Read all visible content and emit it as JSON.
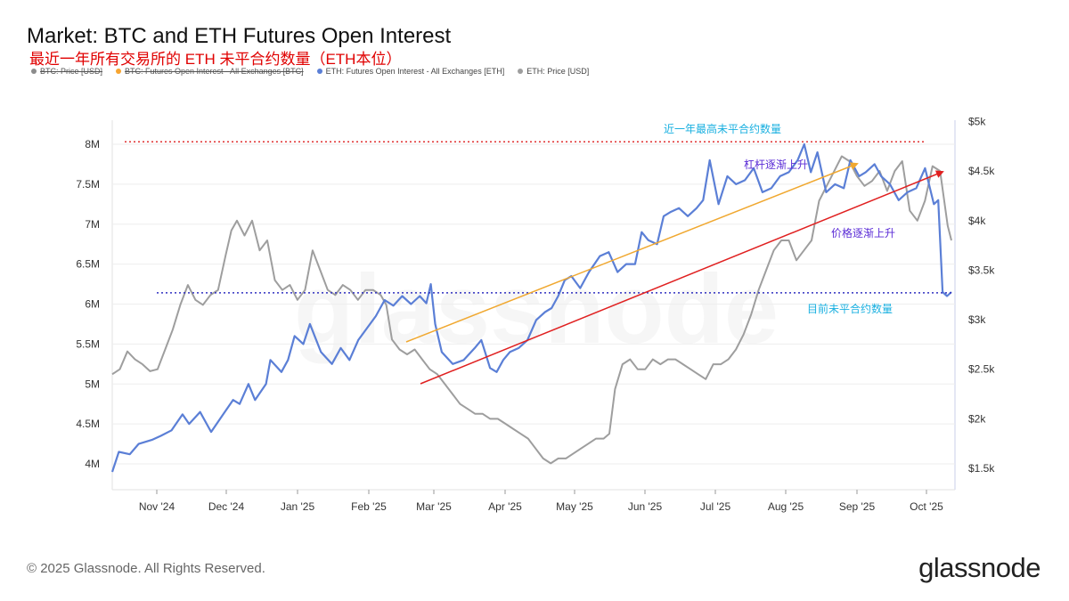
{
  "header": {
    "title": "Market: BTC and ETH Futures Open Interest",
    "subtitle": "最近一年所有交易所的 ETH 未平合约数量（ETH本位）"
  },
  "legend": [
    {
      "label": "BTC: Price [USD]",
      "color": "#8c8c8c",
      "struck": true
    },
    {
      "label": "BTC: Futures Open Interest - All Exchanges [BTC]",
      "color": "#f7a531",
      "struck": true
    },
    {
      "label": "ETH: Futures Open Interest - All Exchanges [ETH]",
      "color": "#5b7fd6",
      "struck": false
    },
    {
      "label": "ETH: Price [USD]",
      "color": "#9e9e9e",
      "struck": false
    }
  ],
  "watermark": "glassnode",
  "annotations": {
    "max_oi_label": "近一年最高未平合约数量",
    "leverage_label": "杠杆逐渐上升",
    "price_label": "价格逐渐上升",
    "current_oi_label": "目前未平合约数量"
  },
  "footer": {
    "copyright": "© 2025 Glassnode. All Rights Reserved.",
    "brand": "glassnode"
  },
  "colors": {
    "oi_line": "#5b7fd6",
    "price_line": "#9e9e9e",
    "max_line": "#e03030",
    "current_line": "#3030c0",
    "leverage_arrow": "#f0a830",
    "price_arrow": "#e02020",
    "cyan_text": "#1ab0e0",
    "purple_text": "#5a2bd6"
  },
  "chart_data": {
    "type": "line",
    "x_ticks": [
      "Nov '24",
      "Dec '24",
      "Jan '25",
      "Feb '25",
      "Mar '25",
      "Apr '25",
      "May '25",
      "Jun '25",
      "Jul '25",
      "Aug '25",
      "Sep '25",
      "Oct '25"
    ],
    "y_left_ticks": [
      "4M",
      "4.5M",
      "5M",
      "5.5M",
      "6M",
      "6.5M",
      "7M",
      "7.5M",
      "8M"
    ],
    "y_right_ticks": [
      "$1.5k",
      "$2k",
      "$2.5k",
      "$3k",
      "$3.5k",
      "$4k",
      "$4.5k",
      "$5k"
    ],
    "ylim_left": [
      3850000,
      8250000
    ],
    "ylim_right": [
      1400,
      5000
    ],
    "x_range_days": [
      0,
      346
    ],
    "reference_lines": {
      "max_open_interest": 8030000,
      "current_open_interest": 6140000
    },
    "series": [
      {
        "name": "ETH: Futures Open Interest - All Exchanges [ETH]",
        "axis": "left",
        "points": [
          [
            0,
            3900000
          ],
          [
            3,
            4150000
          ],
          [
            8,
            4120000
          ],
          [
            12,
            4250000
          ],
          [
            18,
            4300000
          ],
          [
            22,
            4350000
          ],
          [
            27,
            4420000
          ],
          [
            32,
            4620000
          ],
          [
            35,
            4500000
          ],
          [
            40,
            4650000
          ],
          [
            45,
            4400000
          ],
          [
            50,
            4600000
          ],
          [
            55,
            4800000
          ],
          [
            58,
            4750000
          ],
          [
            62,
            5000000
          ],
          [
            65,
            4800000
          ],
          [
            70,
            5000000
          ],
          [
            72,
            5300000
          ],
          [
            77,
            5150000
          ],
          [
            80,
            5300000
          ],
          [
            83,
            5600000
          ],
          [
            87,
            5500000
          ],
          [
            90,
            5750000
          ],
          [
            95,
            5400000
          ],
          [
            100,
            5250000
          ],
          [
            104,
            5450000
          ],
          [
            108,
            5300000
          ],
          [
            112,
            5550000
          ],
          [
            116,
            5700000
          ],
          [
            120,
            5850000
          ],
          [
            124,
            6050000
          ],
          [
            128,
            5980000
          ],
          [
            132,
            6100000
          ],
          [
            136,
            6000000
          ],
          [
            140,
            6100000
          ],
          [
            143,
            6010000
          ],
          [
            145,
            6250000
          ],
          [
            147,
            5750000
          ],
          [
            150,
            5400000
          ],
          [
            155,
            5250000
          ],
          [
            160,
            5300000
          ],
          [
            165,
            5450000
          ],
          [
            168,
            5550000
          ],
          [
            172,
            5200000
          ],
          [
            175,
            5150000
          ],
          [
            178,
            5300000
          ],
          [
            181,
            5400000
          ],
          [
            185,
            5450000
          ],
          [
            189,
            5550000
          ],
          [
            193,
            5800000
          ],
          [
            197,
            5900000
          ],
          [
            200,
            5950000
          ],
          [
            203,
            6100000
          ],
          [
            206,
            6300000
          ],
          [
            209,
            6350000
          ],
          [
            213,
            6200000
          ],
          [
            217,
            6400000
          ],
          [
            222,
            6600000
          ],
          [
            226,
            6650000
          ],
          [
            230,
            6400000
          ],
          [
            234,
            6500000
          ],
          [
            238,
            6500000
          ],
          [
            241,
            6900000
          ],
          [
            244,
            6800000
          ],
          [
            248,
            6750000
          ],
          [
            251,
            7100000
          ],
          [
            254,
            7150000
          ],
          [
            258,
            7200000
          ],
          [
            262,
            7100000
          ],
          [
            266,
            7200000
          ],
          [
            269,
            7300000
          ],
          [
            272,
            7800000
          ],
          [
            276,
            7250000
          ],
          [
            280,
            7600000
          ],
          [
            284,
            7500000
          ],
          [
            288,
            7550000
          ],
          [
            292,
            7700000
          ],
          [
            296,
            7400000
          ],
          [
            300,
            7450000
          ],
          [
            304,
            7600000
          ],
          [
            308,
            7650000
          ],
          [
            312,
            7800000
          ],
          [
            315,
            8000000
          ],
          [
            318,
            7650000
          ],
          [
            321,
            7900000
          ],
          [
            325,
            7400000
          ],
          [
            329,
            7500000
          ],
          [
            333,
            7450000
          ],
          [
            336,
            7800000
          ],
          [
            340,
            7600000
          ],
          [
            343,
            7650000
          ],
          [
            347,
            7750000
          ],
          [
            350,
            7600000
          ],
          [
            354,
            7500000
          ],
          [
            358,
            7300000
          ],
          [
            362,
            7400000
          ],
          [
            366,
            7450000
          ],
          [
            370,
            7700000
          ],
          [
            374,
            7250000
          ],
          [
            376,
            7300000
          ],
          [
            378,
            6150000
          ],
          [
            380,
            6100000
          ],
          [
            382,
            6150000
          ]
        ]
      },
      {
        "name": "ETH: Price [USD]",
        "axis": "right",
        "points": [
          [
            0,
            2450000
          ],
          [
            4,
            2500000
          ],
          [
            8,
            2680000
          ],
          [
            12,
            2600000
          ],
          [
            16,
            2550000
          ],
          [
            20,
            2480000
          ],
          [
            24,
            2500000
          ],
          [
            28,
            2700000
          ],
          [
            32,
            2900000
          ],
          [
            36,
            3150000
          ],
          [
            40,
            3350000
          ],
          [
            44,
            3200000
          ],
          [
            48,
            3150000
          ],
          [
            52,
            3250000
          ],
          [
            56,
            3300000
          ],
          [
            60,
            3650000
          ],
          [
            63,
            3900000
          ],
          [
            66,
            4000000
          ],
          [
            70,
            3850000
          ],
          [
            74,
            4000000
          ],
          [
            78,
            3700000
          ],
          [
            82,
            3800000
          ],
          [
            86,
            3400000
          ],
          [
            90,
            3300000
          ],
          [
            94,
            3350000
          ],
          [
            98,
            3200000
          ],
          [
            102,
            3300000
          ],
          [
            106,
            3700000
          ],
          [
            110,
            3500000
          ],
          [
            114,
            3300000
          ],
          [
            118,
            3250000
          ],
          [
            122,
            3350000
          ],
          [
            126,
            3300000
          ],
          [
            130,
            3200000
          ],
          [
            134,
            3300000
          ],
          [
            138,
            3300000
          ],
          [
            142,
            3250000
          ],
          [
            145,
            3150000
          ],
          [
            148,
            2800000
          ],
          [
            152,
            2700000
          ],
          [
            156,
            2650000
          ],
          [
            160,
            2700000
          ],
          [
            164,
            2600000
          ],
          [
            168,
            2500000
          ],
          [
            172,
            2450000
          ],
          [
            176,
            2350000
          ],
          [
            180,
            2250000
          ],
          [
            184,
            2150000
          ],
          [
            188,
            2100000
          ],
          [
            192,
            2050000
          ],
          [
            196,
            2050000
          ],
          [
            200,
            2000000
          ],
          [
            204,
            2000000
          ],
          [
            208,
            1950000
          ],
          [
            212,
            1900000
          ],
          [
            216,
            1850000
          ],
          [
            220,
            1800000
          ],
          [
            224,
            1700000
          ],
          [
            228,
            1600000
          ],
          [
            232,
            1550000
          ],
          [
            236,
            1600000
          ],
          [
            240,
            1600000
          ],
          [
            244,
            1650000
          ],
          [
            248,
            1700000
          ],
          [
            252,
            1750000
          ],
          [
            256,
            1800000
          ],
          [
            260,
            1800000
          ],
          [
            263,
            1850000
          ],
          [
            266,
            2300000
          ],
          [
            270,
            2550000
          ],
          [
            274,
            2600000
          ],
          [
            278,
            2500000
          ],
          [
            282,
            2500000
          ],
          [
            286,
            2600000
          ],
          [
            290,
            2550000
          ],
          [
            294,
            2600000
          ],
          [
            298,
            2600000
          ],
          [
            302,
            2550000
          ],
          [
            306,
            2500000
          ],
          [
            310,
            2450000
          ],
          [
            314,
            2400000
          ],
          [
            318,
            2550000
          ],
          [
            322,
            2550000
          ],
          [
            326,
            2600000
          ],
          [
            330,
            2700000
          ],
          [
            334,
            2850000
          ],
          [
            338,
            3050000
          ],
          [
            342,
            3300000
          ],
          [
            346,
            3500000
          ],
          [
            350,
            3700000
          ],
          [
            354,
            3800000
          ],
          [
            358,
            3800000
          ],
          [
            362,
            3600000
          ],
          [
            366,
            3700000
          ],
          [
            370,
            3800000
          ],
          [
            374,
            4200000
          ],
          [
            378,
            4350000
          ],
          [
            382,
            4500000
          ],
          [
            386,
            4650000
          ],
          [
            390,
            4600000
          ],
          [
            394,
            4450000
          ],
          [
            398,
            4350000
          ],
          [
            402,
            4400000
          ],
          [
            406,
            4500000
          ],
          [
            410,
            4300000
          ],
          [
            414,
            4500000
          ],
          [
            418,
            4600000
          ],
          [
            422,
            4100000
          ],
          [
            426,
            4000000
          ],
          [
            430,
            4200000
          ],
          [
            434,
            4550000
          ],
          [
            438,
            4500000
          ],
          [
            442,
            3950000
          ],
          [
            444,
            3800000
          ]
        ]
      }
    ]
  }
}
